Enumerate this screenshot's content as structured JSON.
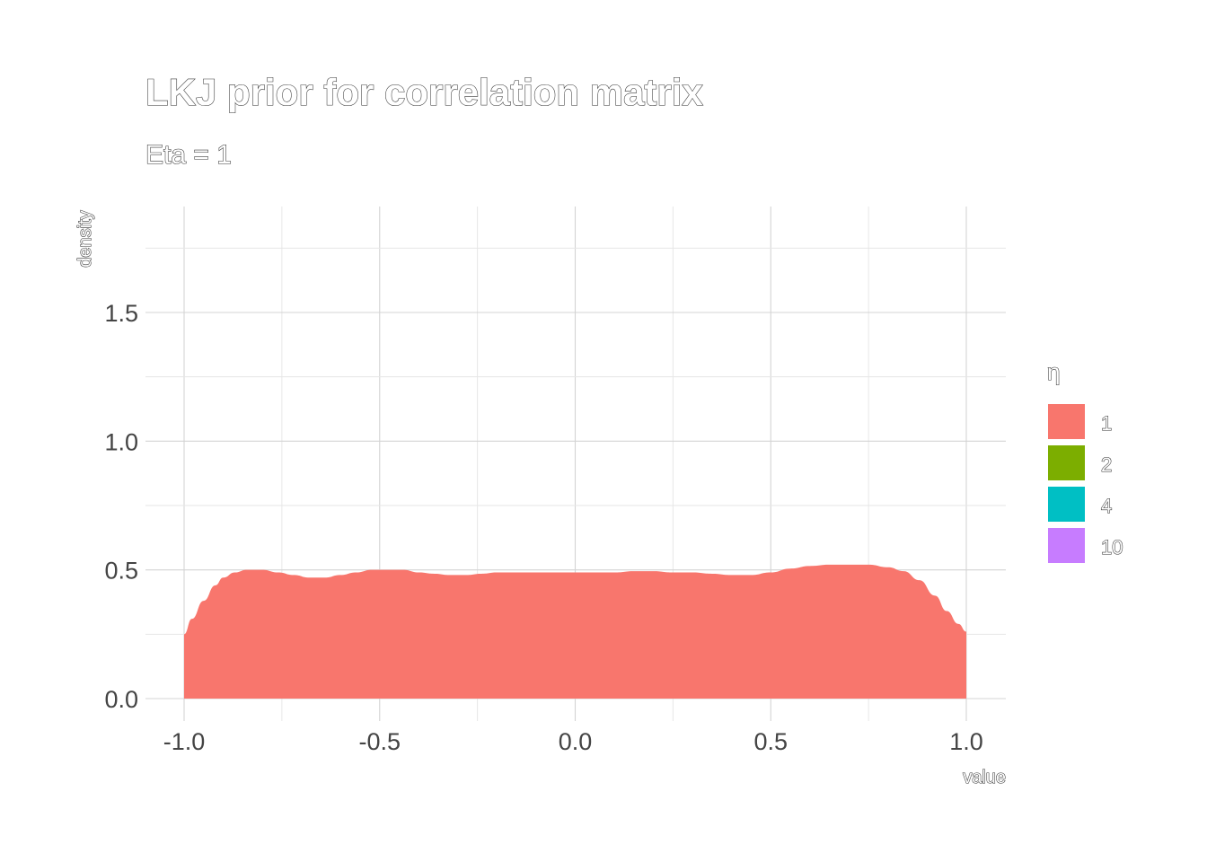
{
  "chart_data": {
    "type": "area",
    "title": "LKJ prior for correlation matrix",
    "subtitle": "Eta =  1",
    "xlabel": "value",
    "ylabel": "density",
    "xlim": [
      -1.1,
      1.1
    ],
    "ylim": [
      0,
      1.85
    ],
    "x_ticks": [
      -1.0,
      -0.5,
      0.0,
      0.5,
      1.0
    ],
    "x_tick_labels": [
      "-1.0",
      "-0.5",
      "0.0",
      "0.5",
      "1.0"
    ],
    "y_ticks": [
      0.0,
      0.5,
      1.0,
      1.5
    ],
    "y_tick_labels": [
      "0.0",
      "0.5",
      "1.0",
      "1.5"
    ],
    "grid": true,
    "legend": {
      "title": "η",
      "position": "right",
      "items": [
        {
          "label": "1",
          "color": "#F8766D"
        },
        {
          "label": "2",
          "color": "#7CAE00"
        },
        {
          "label": "4",
          "color": "#00BFC4"
        },
        {
          "label": "10",
          "color": "#C77CFF"
        }
      ]
    },
    "series": [
      {
        "name": "1",
        "color": "#F8766D",
        "x": [
          -1.0,
          -0.98,
          -0.95,
          -0.92,
          -0.9,
          -0.87,
          -0.84,
          -0.8,
          -0.76,
          -0.72,
          -0.68,
          -0.64,
          -0.6,
          -0.56,
          -0.52,
          -0.48,
          -0.44,
          -0.4,
          -0.36,
          -0.32,
          -0.28,
          -0.24,
          -0.2,
          -0.15,
          -0.1,
          -0.05,
          0.0,
          0.05,
          0.1,
          0.15,
          0.2,
          0.25,
          0.3,
          0.35,
          0.4,
          0.45,
          0.5,
          0.55,
          0.6,
          0.65,
          0.7,
          0.75,
          0.8,
          0.84,
          0.88,
          0.92,
          0.95,
          0.98,
          1.0
        ],
        "y": [
          0.25,
          0.31,
          0.38,
          0.44,
          0.47,
          0.49,
          0.5,
          0.5,
          0.49,
          0.48,
          0.47,
          0.47,
          0.48,
          0.49,
          0.5,
          0.5,
          0.5,
          0.49,
          0.485,
          0.48,
          0.48,
          0.485,
          0.49,
          0.49,
          0.49,
          0.49,
          0.49,
          0.49,
          0.49,
          0.495,
          0.495,
          0.49,
          0.49,
          0.485,
          0.48,
          0.48,
          0.49,
          0.505,
          0.515,
          0.52,
          0.52,
          0.52,
          0.51,
          0.495,
          0.46,
          0.4,
          0.34,
          0.29,
          0.26
        ]
      }
    ]
  }
}
